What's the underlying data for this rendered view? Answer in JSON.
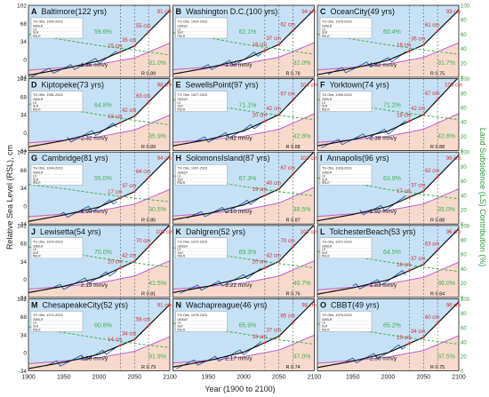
{
  "figure": {
    "y_axis_left": "Relative Sea Level (RSL), cm",
    "y_axis_right": "Land Subsidence (LS) Contribution (%)",
    "x_axis": "Year (1900 to 2100)",
    "left_ticks": [
      "102",
      "68",
      "34",
      "0",
      "-34"
    ],
    "right_ticks": [
      "100",
      "80",
      "60",
      "40",
      "20",
      "0"
    ],
    "x_ticks": [
      "1900",
      "1950",
      "2000",
      "2050",
      "2100"
    ],
    "table_header": "TG Obs.",
    "table_rows": [
      "GMSLR",
      "LS",
      "SLR",
      "RSLR"
    ],
    "unit": "mm/y"
  },
  "colors": {
    "upper_fill": "#b8d9f3",
    "lower_fill": "#f6d6c6",
    "obs": "#1f5fa8",
    "fit": "#111111",
    "ls_line": "#c05bd8",
    "percent": "#3cb44b",
    "marker": "#e53935",
    "right_axis": "#2e9c3a"
  },
  "chart_data": [
    {
      "type": "line",
      "letter": "A",
      "title": "Baltimore(122 yrs)",
      "obs_period": "1902-2023",
      "rate": "1.86 mm/y",
      "r": "R 0.89",
      "ls_pct": [
        "59.6%",
        "31.0%"
      ],
      "heights": [
        "91 cm",
        "55 cm",
        "35 cm",
        "15 cm"
      ],
      "x": [
        1900,
        1950,
        2000,
        2050,
        2100
      ],
      "rsl": [
        -30,
        -18,
        -3,
        25,
        92
      ],
      "ls_contribution": [
        60,
        52,
        44,
        38,
        31
      ],
      "xlim": [
        1900,
        2100
      ],
      "ylim": [
        -34,
        102
      ],
      "y2lim": [
        0,
        100
      ]
    },
    {
      "type": "line",
      "letter": "B",
      "title": "Washington D.C.(100 yrs)",
      "obs_period": "1924-2023",
      "rate": "2.06 mm/y",
      "r": "R 0.78",
      "ls_pct": [
        "62.1%",
        "32.0%"
      ],
      "heights": [
        "94 cm",
        "62 cm",
        "37 cm",
        "18 cm"
      ],
      "x": [
        1900,
        1950,
        2000,
        2050,
        2100
      ],
      "rsl": [
        -28,
        -16,
        -1,
        28,
        94
      ],
      "ls_contribution": [
        62,
        55,
        46,
        39,
        32
      ],
      "xlim": [
        1900,
        2100
      ],
      "ylim": [
        -34,
        102
      ],
      "y2lim": [
        0,
        100
      ]
    },
    {
      "type": "line",
      "letter": "C",
      "title": "OceanCity(49 yrs)",
      "obs_period": "1975-2023",
      "rate": "1.92 mm/y",
      "r": "R 0.75",
      "ls_pct": [
        "60.4%",
        "31.7%"
      ],
      "heights": [
        "93 cm",
        "61 cm",
        "36 cm",
        "18 cm"
      ],
      "x": [
        1900,
        1950,
        2000,
        2050,
        2100
      ],
      "rsl": [
        -29,
        -17,
        -2,
        27,
        93
      ],
      "ls_contribution": [
        60,
        53,
        45,
        38,
        32
      ],
      "xlim": [
        1900,
        2100
      ],
      "ylim": [
        -34,
        102
      ],
      "y2lim": [
        0,
        100
      ]
    },
    {
      "type": "line",
      "letter": "D",
      "title": "Kiptopeke(73 yrs)",
      "obs_period": "1951-2023",
      "rate": "2.32 mm/y",
      "r": "R 0.89",
      "ls_pct": [
        "64.8%",
        "35.9%"
      ],
      "heights": [
        "98 cm",
        "63 cm",
        "42 cm",
        "18 cm"
      ],
      "x": [
        1900,
        1950,
        2000,
        2050,
        2100
      ],
      "rsl": [
        -27,
        -15,
        1,
        31,
        98
      ],
      "ls_contribution": [
        65,
        58,
        50,
        42,
        36
      ],
      "xlim": [
        1900,
        2100
      ],
      "ylim": [
        -34,
        102
      ],
      "y2lim": [
        0,
        100
      ]
    },
    {
      "type": "line",
      "letter": "E",
      "title": "SewellsPoint(97 yrs)",
      "obs_period": "1927-2023",
      "rate": "2.42 mm/y",
      "r": "R 0.88",
      "ls_pct": [
        "71.1%",
        "42.8%"
      ],
      "heights": [
        "104 cm",
        "67 cm",
        "42 cm",
        "20 cm"
      ],
      "x": [
        1900,
        1950,
        2000,
        2050,
        2100
      ],
      "rsl": [
        -25,
        -13,
        3,
        34,
        104
      ],
      "ls_contribution": [
        71,
        64,
        56,
        49,
        43
      ],
      "xlim": [
        1900,
        2100
      ],
      "ylim": [
        -34,
        102
      ],
      "y2lim": [
        0,
        100
      ]
    },
    {
      "type": "line",
      "letter": "F",
      "title": "Yorktown(74 yrs)",
      "obs_period": "1950-2023",
      "rate": "2.38 mm/y",
      "r": "R 0.88",
      "ls_pct": [
        "71.2%",
        "42.8%"
      ],
      "heights": [
        "105 cm",
        "67 cm",
        "42 cm",
        "19 cm"
      ],
      "x": [
        1900,
        1950,
        2000,
        2050,
        2100
      ],
      "rsl": [
        -25,
        -13,
        3,
        34,
        105
      ],
      "ls_contribution": [
        71,
        64,
        56,
        49,
        43
      ],
      "xlim": [
        1900,
        2100
      ],
      "ylim": [
        -34,
        102
      ],
      "y2lim": [
        0,
        100
      ]
    },
    {
      "type": "line",
      "letter": "G",
      "title": "Cambridge(81 yrs)",
      "obs_period": "1943-2023",
      "rate": "1.98 mm/y",
      "r": "R 0.85",
      "ls_pct": [
        "55.0%",
        "30.5%"
      ],
      "heights": [
        "94 cm",
        "64 cm",
        "37 cm",
        "17 cm"
      ],
      "x": [
        1900,
        1950,
        2000,
        2050,
        2100
      ],
      "rsl": [
        -29,
        -17,
        -2,
        27,
        94
      ],
      "ls_contribution": [
        55,
        49,
        42,
        36,
        31
      ],
      "xlim": [
        1900,
        2100
      ],
      "ylim": [
        -34,
        102
      ],
      "y2lim": [
        0,
        100
      ]
    },
    {
      "type": "line",
      "letter": "H",
      "title": "SolomonsIsland(87 yrs)",
      "obs_period": "1937-2023",
      "rate": "2.10 mm/y",
      "r": "R 0.87",
      "ls_pct": [
        "67.3%",
        "38.5%"
      ],
      "heights": [
        "103 cm",
        "67 cm",
        "40 cm",
        "19 cm"
      ],
      "x": [
        1900,
        1950,
        2000,
        2050,
        2100
      ],
      "rsl": [
        -26,
        -14,
        2,
        32,
        103
      ],
      "ls_contribution": [
        67,
        60,
        52,
        45,
        39
      ],
      "xlim": [
        1900,
        2100
      ],
      "ylim": [
        -34,
        102
      ],
      "y2lim": [
        0,
        100
      ]
    },
    {
      "type": "line",
      "letter": "I",
      "title": "Annapolis(96 yrs)",
      "obs_period": "1928-2023",
      "rate": "1.92 mm/y",
      "r": "R 0.88",
      "ls_pct": [
        "63.9%",
        "35.0%"
      ],
      "heights": [
        "96 cm",
        "62 cm",
        "37 cm",
        "17 cm"
      ],
      "x": [
        1900,
        1950,
        2000,
        2050,
        2100
      ],
      "rsl": [
        -28,
        -16,
        -1,
        28,
        96
      ],
      "ls_contribution": [
        64,
        57,
        48,
        41,
        35
      ],
      "xlim": [
        1900,
        2100
      ],
      "ylim": [
        -34,
        102
      ],
      "y2lim": [
        0,
        100
      ]
    },
    {
      "type": "line",
      "letter": "J",
      "title": "Lewisetta(54 yrs)",
      "obs_period": "1970-2023",
      "rate": "2.19 mm/y",
      "r": "R 0.81",
      "ls_pct": [
        "70.0%",
        "41.5%"
      ],
      "heights": [
        "103 cm",
        "70 cm",
        "42 cm",
        "20 cm"
      ],
      "x": [
        1900,
        1950,
        2000,
        2050,
        2100
      ],
      "rsl": [
        -25,
        -13,
        3,
        34,
        103
      ],
      "ls_contribution": [
        70,
        63,
        55,
        48,
        42
      ],
      "xlim": [
        1900,
        2100
      ],
      "ylim": [
        -34,
        102
      ],
      "y2lim": [
        0,
        100
      ]
    },
    {
      "type": "line",
      "letter": "K",
      "title": "Dahlgren(52 yrs)",
      "obs_period": "1972-2023",
      "rate": "2.22 mm/y",
      "r": "R 0.76",
      "ls_pct": [
        "69.3%",
        "40.7%"
      ],
      "heights": [
        "103 cm",
        "70 cm",
        "42 cm",
        "20 cm"
      ],
      "x": [
        1900,
        1950,
        2000,
        2050,
        2100
      ],
      "rsl": [
        -25,
        -13,
        3,
        34,
        103
      ],
      "ls_contribution": [
        69,
        62,
        54,
        47,
        41
      ],
      "xlim": [
        1900,
        2100
      ],
      "ylim": [
        -34,
        102
      ],
      "y2lim": [
        0,
        100
      ]
    },
    {
      "type": "line",
      "letter": "L",
      "title": "TolchesterBeach(53 yrs)",
      "obs_period": "1971-2023",
      "rate": "1.83 mm/y",
      "r": "R 0.84",
      "ls_pct": [
        "64.5%",
        "36.0%"
      ],
      "heights": [
        "96 cm",
        "63 cm",
        "37 cm",
        "16 cm"
      ],
      "x": [
        1900,
        1950,
        2000,
        2050,
        2100
      ],
      "rsl": [
        -28,
        -16,
        -1,
        28,
        96
      ],
      "ls_contribution": [
        64,
        57,
        49,
        42,
        36
      ],
      "xlim": [
        1900,
        2100
      ],
      "ylim": [
        -34,
        102
      ],
      "y2lim": [
        0,
        100
      ]
    },
    {
      "type": "line",
      "letter": "M",
      "title": "ChesapeakeCity(52 yrs)",
      "obs_period": "1972-2023",
      "rate": "1.68 mm/y",
      "r": "R 0.79",
      "ls_pct": [
        "60.6%",
        "31.9%"
      ],
      "heights": [
        "91 cm",
        "58 cm",
        "34 cm",
        "14 cm"
      ],
      "x": [
        1900,
        1950,
        2000,
        2050,
        2100
      ],
      "rsl": [
        -30,
        -18,
        -3,
        25,
        91
      ],
      "ls_contribution": [
        61,
        53,
        45,
        38,
        32
      ],
      "xlim": [
        1900,
        2100
      ],
      "ylim": [
        -34,
        102
      ],
      "y2lim": [
        0,
        100
      ]
    },
    {
      "type": "line",
      "letter": "N",
      "title": "Wachapreague(46 yrs)",
      "obs_period": "1978-2023",
      "rate": "2.17 mm/y",
      "r": "R 0.74",
      "ls_pct": [
        "65.9%",
        "37.0%"
      ],
      "heights": [
        "98 cm",
        "65 cm",
        "37 cm",
        "18 cm"
      ],
      "x": [
        1900,
        1950,
        2000,
        2050,
        2100
      ],
      "rsl": [
        -27,
        -15,
        1,
        31,
        98
      ],
      "ls_contribution": [
        66,
        59,
        51,
        43,
        37
      ],
      "xlim": [
        1900,
        2100
      ],
      "ylim": [
        -34,
        102
      ],
      "y2lim": [
        0,
        100
      ]
    },
    {
      "type": "line",
      "letter": "O",
      "title": "CBBT(49 yrs)",
      "obs_period": "1975-2023",
      "rate": "2.36 mm/y",
      "r": "R 0.75",
      "ls_pct": [
        "65.2%",
        "37.5%"
      ],
      "heights": [
        "96 cm",
        "60 cm",
        "34 cm",
        "15 cm"
      ],
      "x": [
        1900,
        1950,
        2000,
        2050,
        2100
      ],
      "rsl": [
        -28,
        -16,
        0,
        29,
        96
      ],
      "ls_contribution": [
        65,
        58,
        50,
        43,
        37
      ],
      "xlim": [
        1900,
        2100
      ],
      "ylim": [
        -34,
        102
      ],
      "y2lim": [
        0,
        100
      ]
    }
  ]
}
